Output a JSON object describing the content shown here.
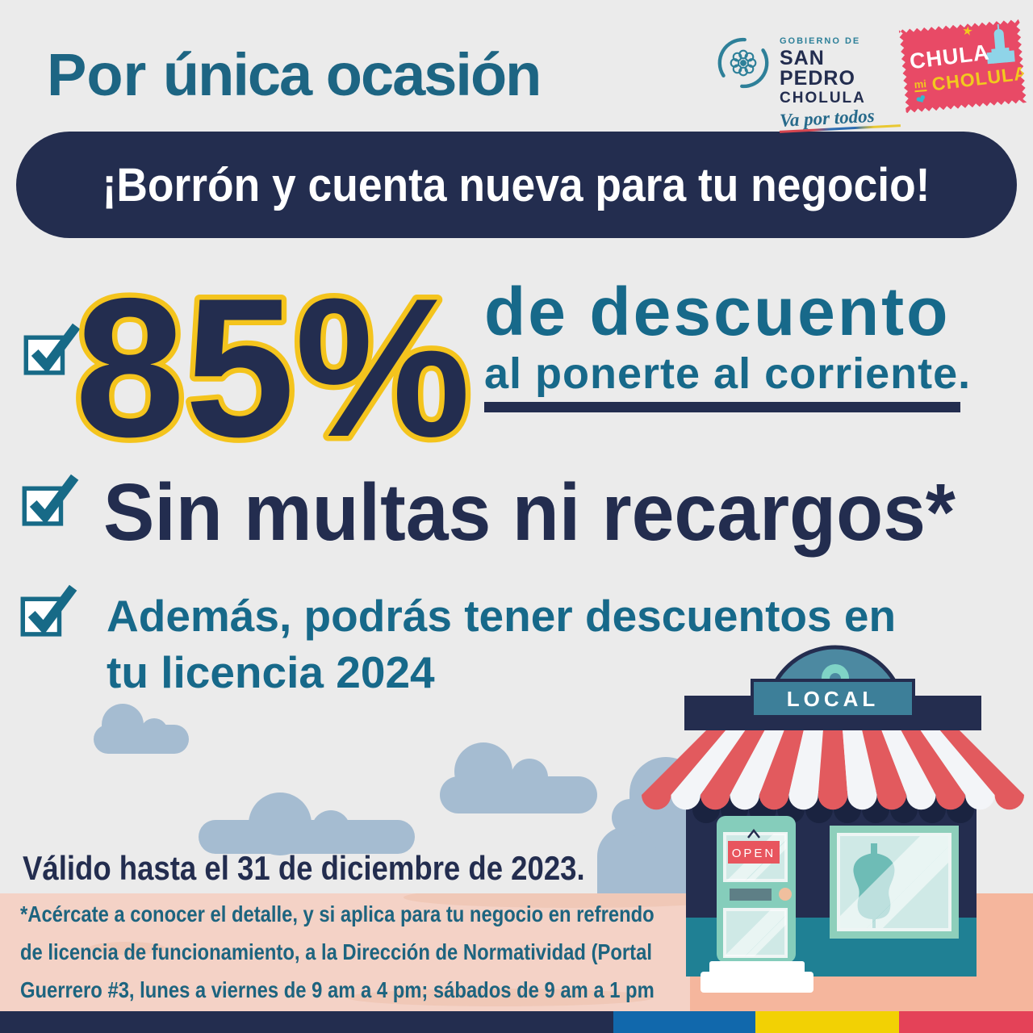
{
  "header": {
    "title": {
      "prefix": "Por ",
      "emphasis": "única ocasión"
    },
    "gov_logo": {
      "top": "GOBIERNO DE",
      "name1": "SAN PEDRO",
      "name2": "CHOLULA",
      "tagline": "Va por todos"
    },
    "stamp": {
      "word1": "CHULA",
      "word2": "mi",
      "word3": "CHOLULA",
      "star": "★",
      "heart": "❤"
    }
  },
  "banner": {
    "text": "¡Borrón y cuenta nueva para tu negocio!"
  },
  "benefits": {
    "discount": {
      "value": "85%",
      "title": "de descuento",
      "subtitle": "al ponerte al corriente."
    },
    "no_fines": "Sin multas ni recargos*",
    "license": {
      "line1": "Además, podrás tener descuentos en",
      "line2": "tu licencia 2024"
    }
  },
  "store": {
    "sign": "LOCAL",
    "door_sign": "OPEN"
  },
  "validity": "Válido hasta el 31 de diciembre de 2023.",
  "fine_print": {
    "line1": "*Acércate a conocer el detalle, y si aplica para tu negocio en refrendo",
    "line2": "de licencia de funcionamiento, a la Dirección de Normatividad (Portal",
    "line3": "Guerrero #3, lunes a viernes de 9 am a 4 pm; sábados de 9 am a 1 pm"
  },
  "colors": {
    "background": "#ebebeb",
    "navy": "#232d4f",
    "teal_text": "#17698a",
    "title_teal": "#1d6583",
    "yellow_outline": "#f4c41d",
    "check_teal": "#176a87",
    "cloud": "#a5bcd1",
    "pink_box": "#f4d2c6",
    "salmon": "#f5b69d",
    "awning_red": "#e25a5e",
    "stamp_pink": "#e84a66",
    "stripe_blue": "#1168ac",
    "stripe_yellow": "#f2d104",
    "stripe_red": "#e44258"
  }
}
